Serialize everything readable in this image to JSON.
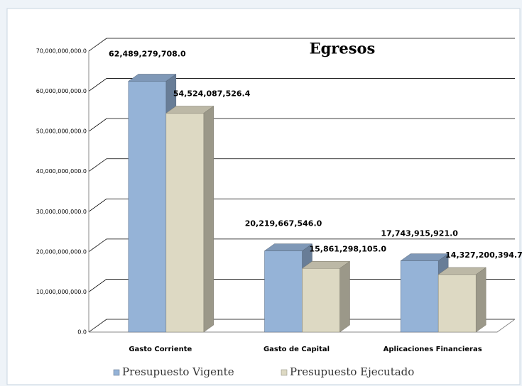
{
  "chart_data": {
    "type": "bar3d",
    "title": "Egresos",
    "categories": [
      "Gasto Corriente",
      "Gasto de Capital",
      "Aplicaciones Financieras"
    ],
    "series": [
      {
        "name": "Presupuesto Vigente",
        "color": "#95b3d7",
        "values": [
          62489279708.0,
          20219667546.0,
          17743915921.0
        ],
        "value_labels": [
          "62,489,279,708.0",
          "20,219,667,546.0",
          "17,743,915,921.0"
        ]
      },
      {
        "name": "Presupuesto Ejecutado",
        "color": "#ddd9c3",
        "values": [
          54524087526.4,
          15861298105.0,
          14327200394.7
        ],
        "value_labels": [
          "54,524,087,526.4",
          "15,861,298,105.0",
          "14,327,200,394.7"
        ]
      }
    ],
    "ylim": [
      0,
      70000000000
    ],
    "yticks": [
      {
        "value": 0,
        "label": "0.0"
      },
      {
        "value": 10000000000,
        "label": "10,000,000,000.0"
      },
      {
        "value": 20000000000,
        "label": "20,000,000,000.0"
      },
      {
        "value": 30000000000,
        "label": "30,000,000,000.0"
      },
      {
        "value": 40000000000,
        "label": "40,000,000,000.0"
      },
      {
        "value": 50000000000,
        "label": "50,000,000,000.0"
      },
      {
        "value": 60000000000,
        "label": "60,000,000,000.0"
      },
      {
        "value": 70000000000,
        "label": "70,000,000,000.0"
      }
    ],
    "grid": true,
    "legend": "bottom"
  }
}
